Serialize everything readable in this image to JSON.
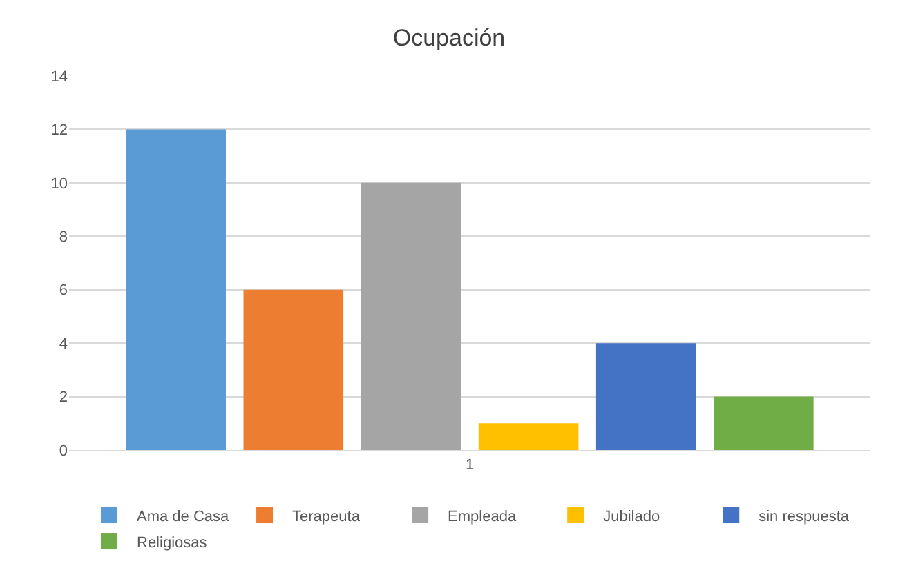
{
  "chart_data": {
    "type": "bar",
    "title": "Ocupación",
    "categories": [
      "1"
    ],
    "series": [
      {
        "name": "Ama de Casa",
        "color": "#5b9bd5",
        "values": [
          12
        ]
      },
      {
        "name": "Terapeuta",
        "color": "#ed7d31",
        "values": [
          6
        ]
      },
      {
        "name": "Empleada",
        "color": "#a5a5a5",
        "values": [
          10
        ]
      },
      {
        "name": "Jubilado",
        "color": "#ffc000",
        "values": [
          1
        ]
      },
      {
        "name": "sin respuesta",
        "color": "#4472c4",
        "values": [
          4
        ]
      },
      {
        "name": "Religiosas",
        "color": "#70ad47",
        "values": [
          2
        ]
      }
    ],
    "ylim": [
      0,
      14
    ],
    "yticks": [
      0,
      2,
      4,
      6,
      8,
      10,
      12,
      14
    ],
    "grid": "y",
    "legend": "bottom"
  }
}
